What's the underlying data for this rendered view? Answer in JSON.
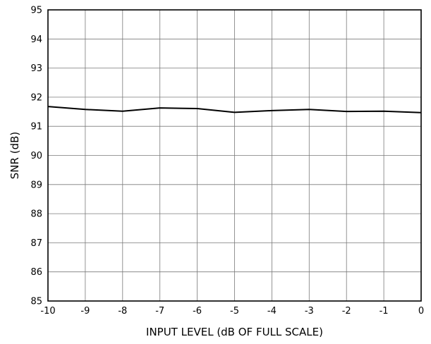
{
  "chart_data": {
    "type": "line",
    "title": "",
    "xlabel": "INPUT LEVEL (dB OF FULL SCALE)",
    "ylabel": "SNR (dB)",
    "xlim": [
      -10,
      0
    ],
    "ylim": [
      85,
      95
    ],
    "x_ticks": [
      -10,
      -9,
      -8,
      -7,
      -6,
      -5,
      -4,
      -3,
      -2,
      -1,
      0
    ],
    "y_ticks": [
      85,
      86,
      87,
      88,
      89,
      90,
      91,
      92,
      93,
      94,
      95
    ],
    "grid": true,
    "legend": "none",
    "series": [
      {
        "x": [
          -10,
          -9,
          -8,
          -7,
          -6,
          -5,
          -4,
          -3,
          -2,
          -1,
          0
        ],
        "y": [
          91.68,
          91.58,
          91.52,
          91.63,
          91.61,
          91.48,
          91.54,
          91.58,
          91.51,
          91.52,
          91.47
        ]
      }
    ]
  }
}
